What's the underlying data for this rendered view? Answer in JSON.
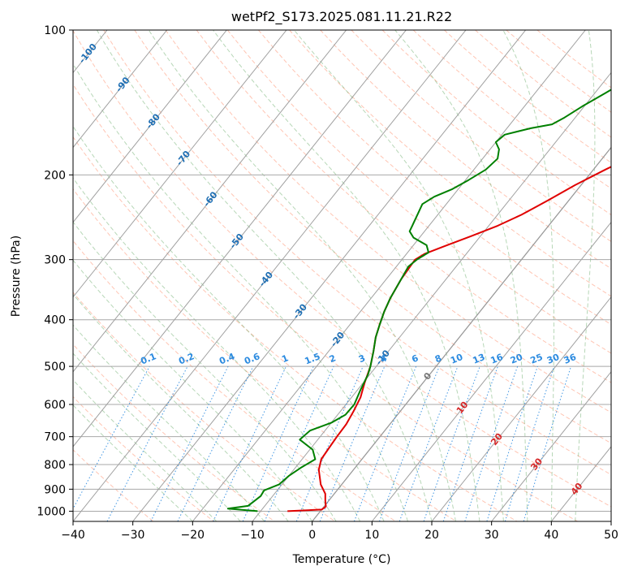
{
  "chart_data": {
    "type": "line",
    "title": "wetPf2_S173.2025.081.11.21.R22",
    "xlabel": "Temperature (°C)",
    "ylabel": "Pressure (hPa)",
    "xlim": [
      -40,
      50
    ],
    "ylim": [
      1050,
      100
    ],
    "yscale": "log",
    "grid": true,
    "x_ticks": [
      "−40",
      "−30",
      "−20",
      "−10",
      "0",
      "10",
      "20",
      "30",
      "40",
      "50"
    ],
    "y_ticks": [
      {
        "p": 100,
        "label": "100"
      },
      {
        "p": 200,
        "label": "200"
      },
      {
        "p": 300,
        "label": "300"
      },
      {
        "p": 400,
        "label": "400"
      },
      {
        "p": 500,
        "label": "500"
      },
      {
        "p": 600,
        "label": "600"
      },
      {
        "p": 700,
        "label": "700"
      },
      {
        "p": 800,
        "label": "800"
      },
      {
        "p": 900,
        "label": "900"
      },
      {
        "p": 1000,
        "label": "1000"
      }
    ],
    "isotherm_labels": [
      {
        "t": -100,
        "p": 112,
        "label": "-100"
      },
      {
        "t": -90,
        "p": 130,
        "label": "-90"
      },
      {
        "t": -80,
        "p": 155,
        "label": "-80"
      },
      {
        "t": -70,
        "p": 185,
        "label": "-70"
      },
      {
        "t": -60,
        "p": 225,
        "label": "-60"
      },
      {
        "t": -50,
        "p": 275,
        "label": "-50"
      },
      {
        "t": -40,
        "p": 330,
        "label": "-40"
      },
      {
        "t": -30,
        "p": 385,
        "label": "-30"
      },
      {
        "t": -20,
        "p": 440,
        "label": "-20"
      },
      {
        "t": -10,
        "p": 480,
        "label": "-10"
      },
      {
        "t": 0,
        "p": 525,
        "label": "0"
      },
      {
        "t": 10,
        "p": 610,
        "label": "10"
      },
      {
        "t": 20,
        "p": 710,
        "label": "20"
      },
      {
        "t": 30,
        "p": 800,
        "label": "30"
      },
      {
        "t": 40,
        "p": 900,
        "label": "40"
      }
    ],
    "mixing_ratio_labels": [
      "0.1",
      "0.2",
      "0.4",
      "0.6",
      "1",
      "1.5",
      "2",
      "3",
      "4",
      "6",
      "8",
      "10",
      "13",
      "16",
      "20",
      "25",
      "30",
      "36"
    ],
    "mixing_ratio_values": [
      0.1,
      0.2,
      0.4,
      0.6,
      1,
      1.5,
      2,
      3,
      4,
      6,
      8,
      10,
      13,
      16,
      20,
      25,
      30,
      36
    ],
    "series": [
      {
        "name": "",
        "color": "#e00000",
        "points": [
          [
            -5.5,
            1000
          ],
          [
            0.0,
            992
          ],
          [
            0.3,
            978
          ],
          [
            -0.6,
            950
          ],
          [
            -1.5,
            920
          ],
          [
            -3.5,
            880
          ],
          [
            -5.8,
            820
          ],
          [
            -6.8,
            780
          ],
          [
            -7.0,
            740
          ],
          [
            -7.2,
            700
          ],
          [
            -7.3,
            660
          ],
          [
            -7.8,
            620
          ],
          [
            -8.5,
            580
          ],
          [
            -9.8,
            540
          ],
          [
            -11.0,
            500
          ],
          [
            -12.5,
            465
          ],
          [
            -14.0,
            435
          ],
          [
            -15.0,
            410
          ],
          [
            -16.0,
            385
          ],
          [
            -16.8,
            360
          ],
          [
            -17.5,
            330
          ],
          [
            -17.8,
            300
          ],
          [
            -17.0,
            292
          ],
          [
            -14.8,
            282
          ],
          [
            -11.5,
            268
          ],
          [
            -8.5,
            255
          ],
          [
            -6.0,
            242
          ],
          [
            -3.5,
            226
          ],
          [
            -1.0,
            210
          ],
          [
            2.0,
            195
          ],
          [
            5.5,
            180
          ],
          [
            9.5,
            168
          ],
          [
            12.5,
            160
          ],
          [
            14.0,
            152
          ],
          [
            16.5,
            143
          ],
          [
            19.5,
            136
          ],
          [
            24.0,
            128
          ],
          [
            28.0,
            121
          ],
          [
            31.0,
            115
          ],
          [
            33.0,
            110
          ],
          [
            34.5,
            105
          ],
          [
            35.5,
            102
          ],
          [
            36.0,
            100
          ]
        ]
      },
      {
        "name": "",
        "color": "#008000",
        "points": [
          [
            -10.5,
            1000
          ],
          [
            -15.8,
            988
          ],
          [
            -12.8,
            975
          ],
          [
            -12.0,
            930
          ],
          [
            -12.2,
            905
          ],
          [
            -10.5,
            880
          ],
          [
            -10.0,
            845
          ],
          [
            -9.0,
            810
          ],
          [
            -7.8,
            780
          ],
          [
            -9.5,
            745
          ],
          [
            -13.0,
            710
          ],
          [
            -12.5,
            680
          ],
          [
            -10.0,
            655
          ],
          [
            -8.7,
            630
          ],
          [
            -8.6,
            600
          ],
          [
            -9.5,
            560
          ],
          [
            -10.3,
            520
          ],
          [
            -11.0,
            500
          ],
          [
            -12.5,
            465
          ],
          [
            -14.0,
            435
          ],
          [
            -15.0,
            410
          ],
          [
            -16.0,
            385
          ],
          [
            -16.8,
            360
          ],
          [
            -17.5,
            330
          ],
          [
            -18.0,
            310
          ],
          [
            -17.5,
            300
          ],
          [
            -16.5,
            290
          ],
          [
            -17.8,
            280
          ],
          [
            -21.0,
            270
          ],
          [
            -22.5,
            262
          ],
          [
            -22.8,
            255
          ],
          [
            -23.5,
            240
          ],
          [
            -24.0,
            230
          ],
          [
            -23.0,
            222
          ],
          [
            -21.0,
            214
          ],
          [
            -19.5,
            205
          ],
          [
            -18.0,
            195
          ],
          [
            -17.5,
            185
          ],
          [
            -18.5,
            177
          ],
          [
            -20.0,
            171
          ],
          [
            -19.5,
            165
          ],
          [
            -16.0,
            160
          ],
          [
            -13.0,
            157
          ],
          [
            -11.8,
            152
          ],
          [
            -10.3,
            144
          ],
          [
            -8.2,
            135
          ],
          [
            -6.2,
            127
          ],
          [
            -5.0,
            120
          ],
          [
            -3.5,
            112
          ],
          [
            -1.5,
            104
          ],
          [
            -0.5,
            100
          ]
        ]
      }
    ]
  }
}
